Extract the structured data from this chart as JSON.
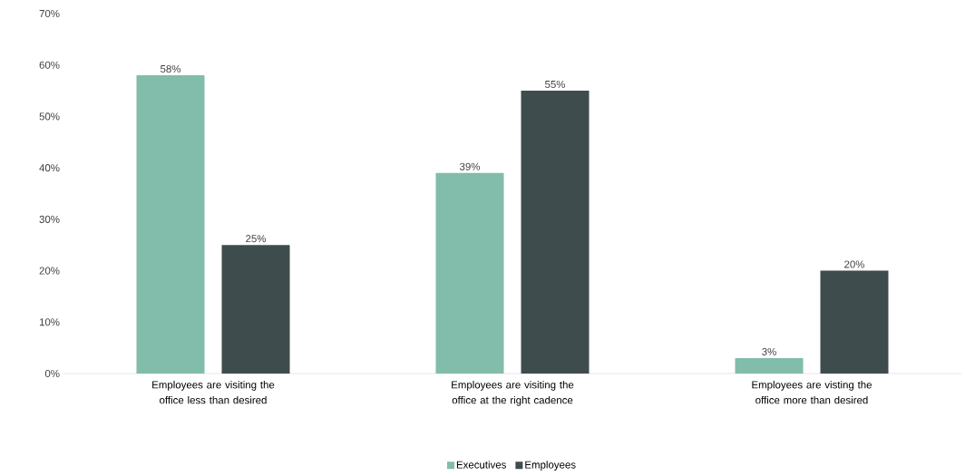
{
  "chart_data": {
    "type": "bar",
    "categories": [
      "Employees are visiting the office less than desired",
      "Employees are visiting the office at the right cadence",
      "Employees are visting the office more than desired"
    ],
    "series": [
      {
        "name": "Executives",
        "color": "#82bcaa",
        "values": [
          58,
          39,
          3
        ],
        "value_labels": [
          "58%",
          "39%",
          "3%"
        ]
      },
      {
        "name": "Employees",
        "color": "#3f4c4e",
        "values": [
          25,
          55,
          20
        ],
        "value_labels": [
          "25%",
          "55%",
          "20%"
        ]
      }
    ],
    "ylim": [
      0,
      70
    ],
    "yticks": [
      {
        "value": 0,
        "label": "0%"
      },
      {
        "value": 10,
        "label": "10%"
      },
      {
        "value": 20,
        "label": "20%"
      },
      {
        "value": 30,
        "label": "30%"
      },
      {
        "value": 40,
        "label": "40%"
      },
      {
        "value": 50,
        "label": "50%"
      },
      {
        "value": 60,
        "label": "60%"
      },
      {
        "value": 70,
        "label": "70%"
      }
    ],
    "legend": "bottom"
  }
}
